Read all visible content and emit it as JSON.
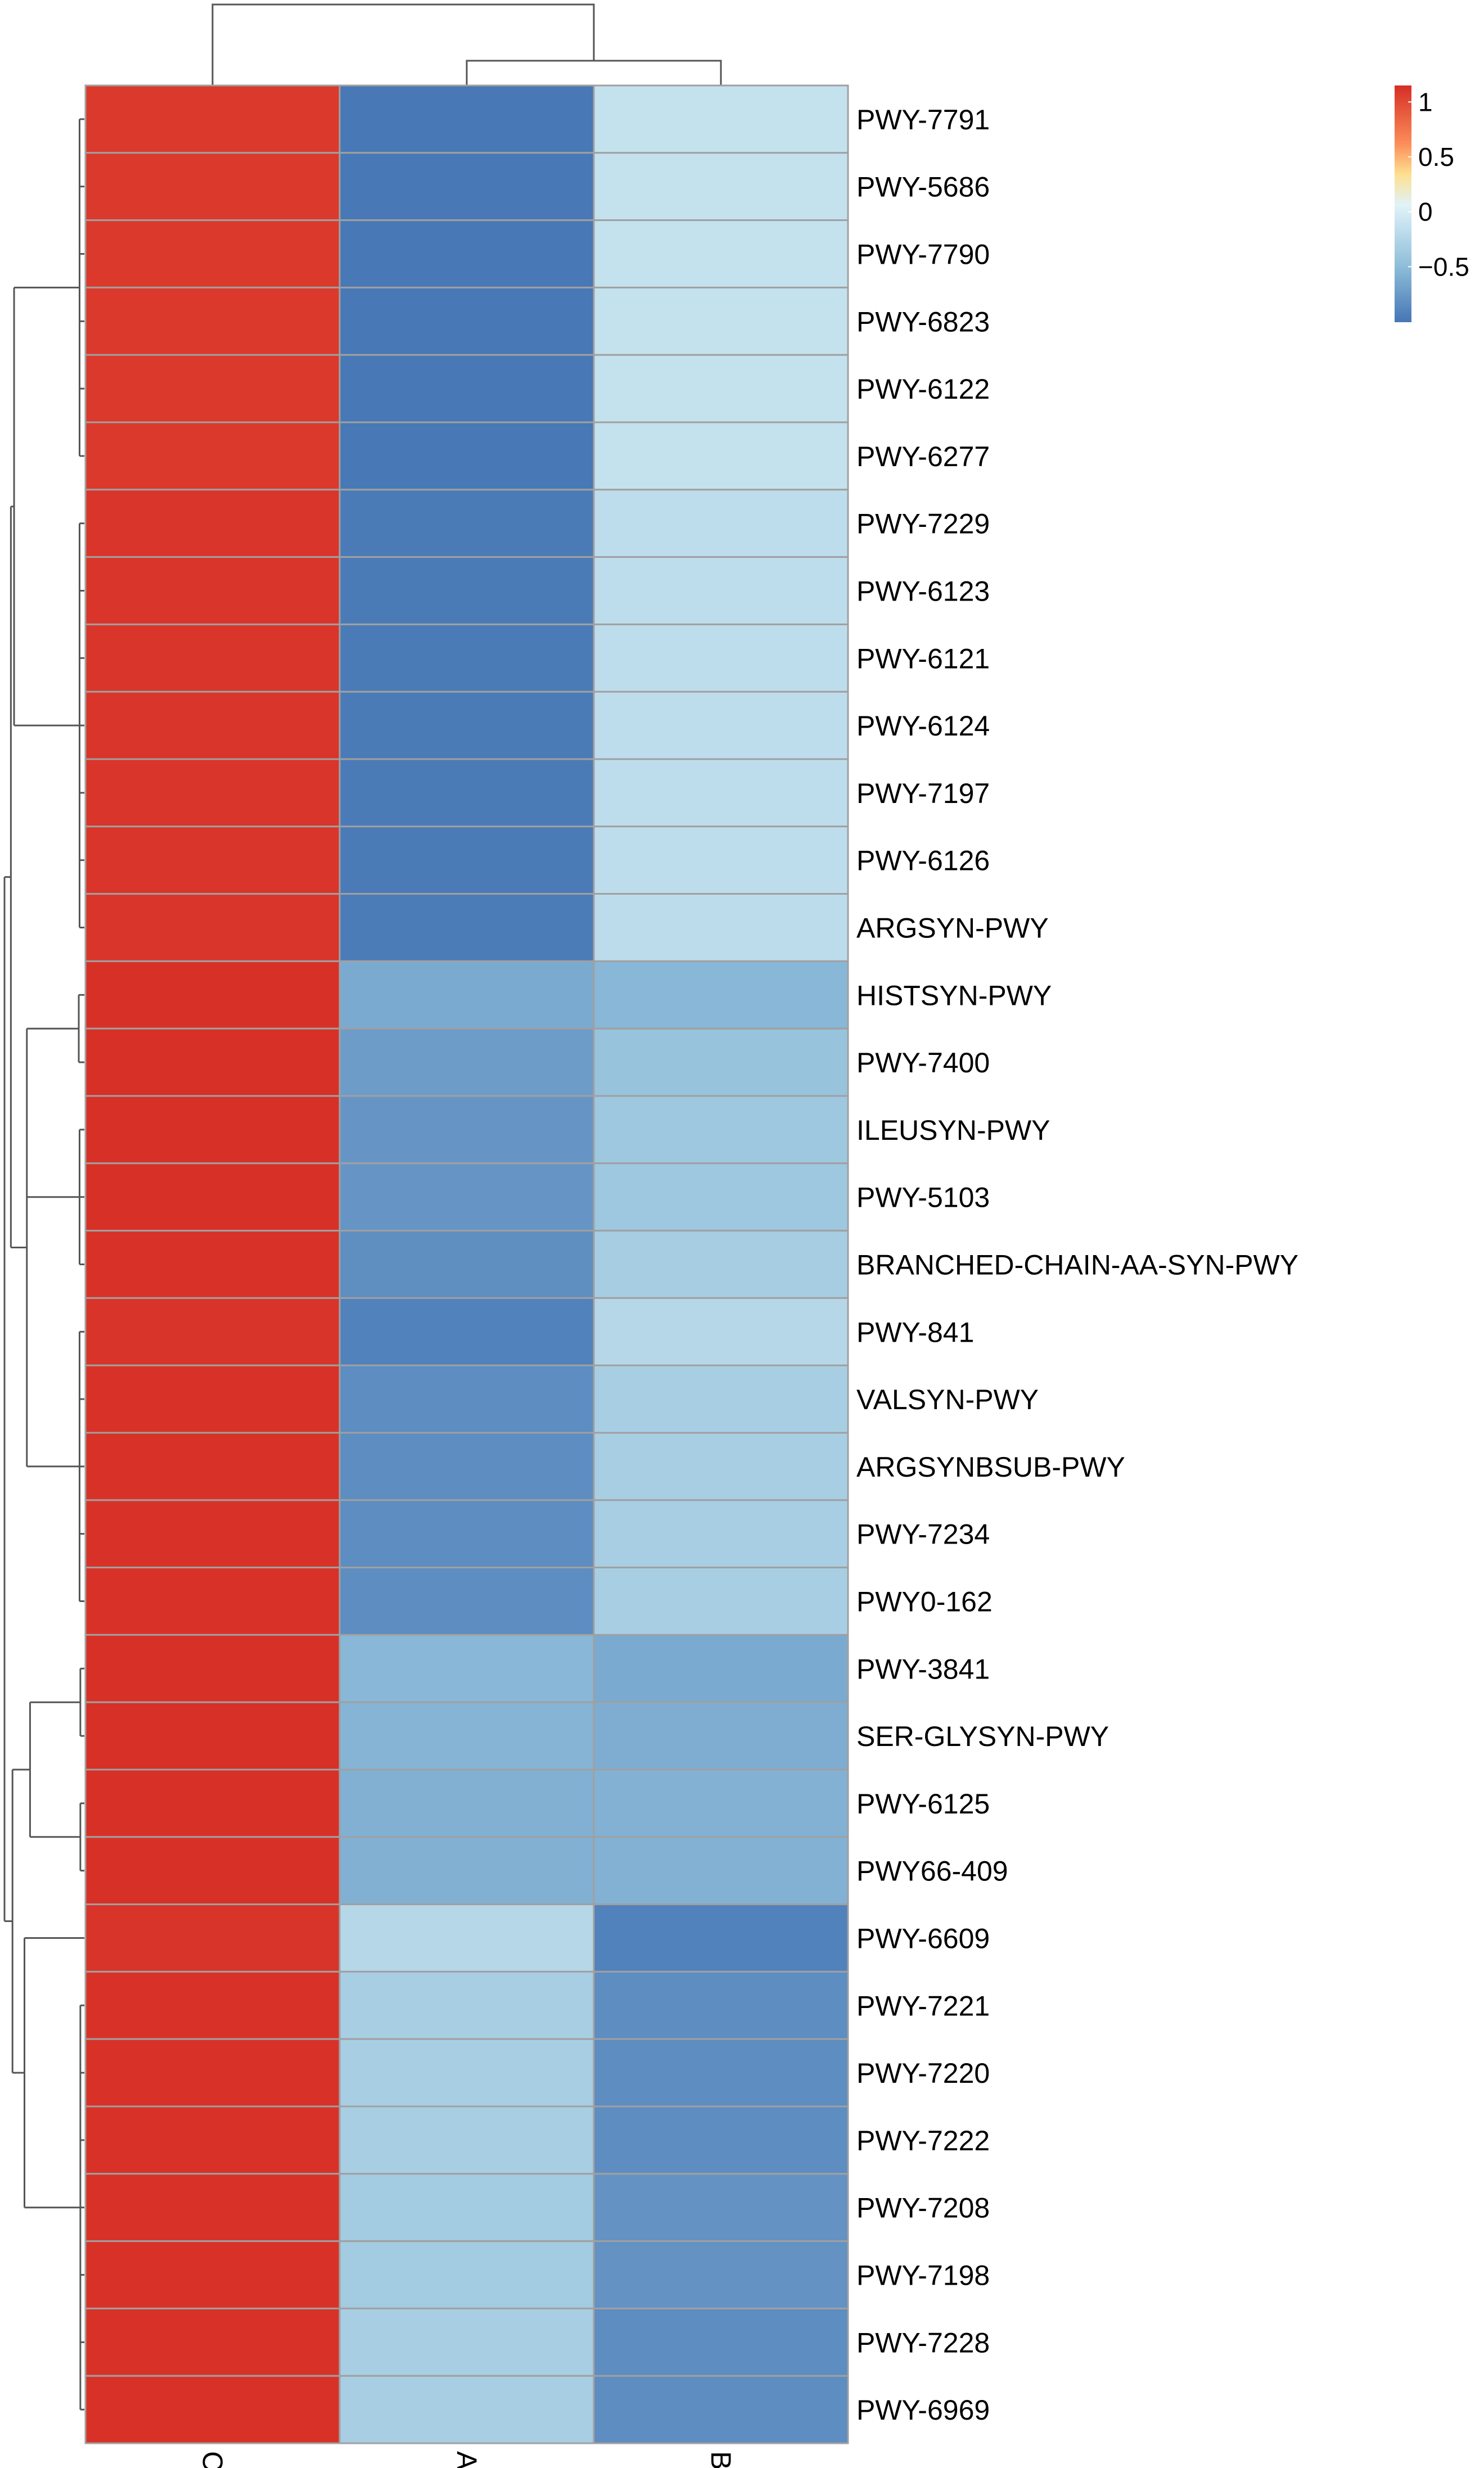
{
  "chart_data": {
    "type": "heatmap",
    "title": "",
    "xlabel": "",
    "ylabel": "",
    "columns": [
      "C",
      "A",
      "B"
    ],
    "rows": [
      "PWY-7791",
      "PWY-5686",
      "PWY-7790",
      "PWY-6823",
      "PWY-6122",
      "PWY-6277",
      "PWY-7229",
      "PWY-6123",
      "PWY-6121",
      "PWY-6124",
      "PWY-7197",
      "PWY-6126",
      "ARGSYN-PWY",
      "HISTSYN-PWY",
      "PWY-7400",
      "ILEUSYN-PWY",
      "PWY-5103",
      "BRANCHED-CHAIN-AA-SYN-PWY",
      "PWY-841",
      "VALSYN-PWY",
      "ARGSYNBSUB-PWY",
      "PWY-7234",
      "PWY0-162",
      "PWY-3841",
      "SER-GLYSYN-PWY",
      "PWY-6125",
      "PWY66-409",
      "PWY-6609",
      "PWY-7221",
      "PWY-7220",
      "PWY-7222",
      "PWY-7208",
      "PWY-7198",
      "PWY-7228",
      "PWY-6969"
    ],
    "values": [
      [
        1.1,
        -0.98,
        -0.12
      ],
      [
        1.1,
        -0.98,
        -0.12
      ],
      [
        1.1,
        -0.98,
        -0.12
      ],
      [
        1.1,
        -0.98,
        -0.12
      ],
      [
        1.1,
        -0.98,
        -0.12
      ],
      [
        1.1,
        -0.98,
        -0.12
      ],
      [
        1.12,
        -0.96,
        -0.16
      ],
      [
        1.12,
        -0.96,
        -0.16
      ],
      [
        1.12,
        -0.96,
        -0.16
      ],
      [
        1.12,
        -0.96,
        -0.16
      ],
      [
        1.12,
        -0.96,
        -0.16
      ],
      [
        1.12,
        -0.96,
        -0.16
      ],
      [
        1.12,
        -0.95,
        -0.17
      ],
      [
        1.15,
        -0.62,
        -0.53
      ],
      [
        1.15,
        -0.72,
        -0.43
      ],
      [
        1.15,
        -0.77,
        -0.38
      ],
      [
        1.15,
        -0.77,
        -0.38
      ],
      [
        1.14,
        -0.82,
        -0.32
      ],
      [
        1.13,
        -0.91,
        -0.22
      ],
      [
        1.14,
        -0.83,
        -0.31
      ],
      [
        1.14,
        -0.83,
        -0.31
      ],
      [
        1.14,
        -0.83,
        -0.31
      ],
      [
        1.14,
        -0.83,
        -0.31
      ],
      [
        1.15,
        -0.53,
        -0.62
      ],
      [
        1.15,
        -0.55,
        -0.6
      ],
      [
        1.15,
        -0.58,
        -0.57
      ],
      [
        1.15,
        -0.58,
        -0.57
      ],
      [
        1.13,
        -0.22,
        -0.91
      ],
      [
        1.14,
        -0.31,
        -0.83
      ],
      [
        1.14,
        -0.31,
        -0.83
      ],
      [
        1.14,
        -0.31,
        -0.83
      ],
      [
        1.14,
        -0.35,
        -0.79
      ],
      [
        1.14,
        -0.35,
        -0.79
      ],
      [
        1.14,
        -0.31,
        -0.83
      ],
      [
        1.14,
        -0.31,
        -0.83
      ]
    ],
    "color_scale": {
      "min": -1.0,
      "max": 1.15,
      "stops": [
        {
          "value": -1.0,
          "color": "#4575b4"
        },
        {
          "value": -0.47,
          "color": "#91bfdb"
        },
        {
          "value": 0.07,
          "color": "#e0f3f8"
        },
        {
          "value": 0.35,
          "color": "#fee090"
        },
        {
          "value": 0.63,
          "color": "#fc8d59"
        },
        {
          "value": 1.15,
          "color": "#d73027"
        }
      ],
      "ticks": [
        1,
        0.5,
        0,
        -0.5
      ],
      "tick_labels": [
        "1",
        "0.5",
        "0",
        "−0.5"
      ]
    },
    "grid": true,
    "cell_border_color": "#a0a0a0",
    "legend": "top-right",
    "column_dendrogram": "C joins (A, B) at the root",
    "row_dendrogram": true
  }
}
